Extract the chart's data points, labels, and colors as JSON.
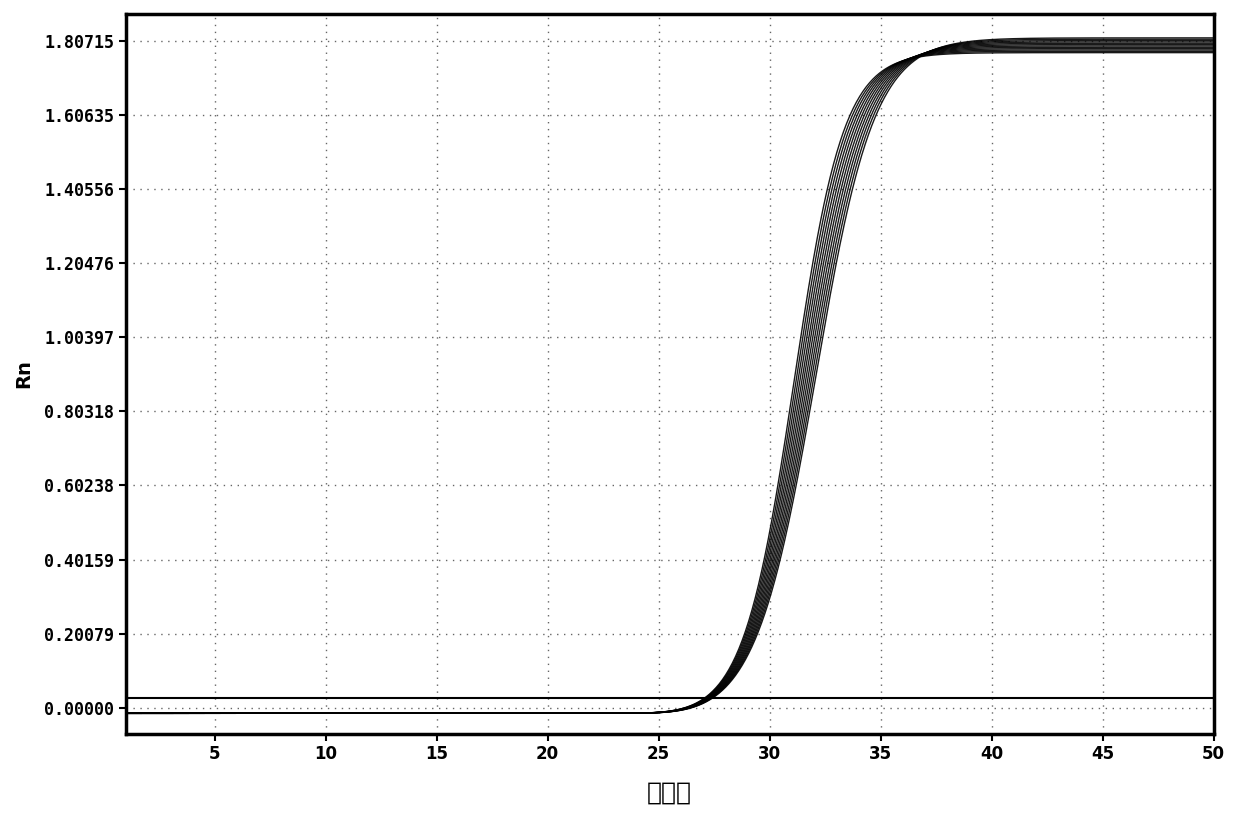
{
  "title": "",
  "xlabel": "循环数",
  "ylabel": "Rn",
  "xlim": [
    1,
    50
  ],
  "ylim": [
    -0.07,
    1.88
  ],
  "xticks": [
    5,
    10,
    15,
    20,
    25,
    30,
    35,
    40,
    45,
    50
  ],
  "yticks": [
    0.0,
    0.20079,
    0.40159,
    0.60238,
    0.80318,
    1.00397,
    1.20476,
    1.40556,
    1.60635,
    1.80715
  ],
  "ytick_labels": [
    "0.00000",
    "0.20079",
    "0.40159",
    "0.60238",
    "0.80318",
    "1.00397",
    "1.20476",
    "1.40556",
    "1.60635",
    "1.80715"
  ],
  "n_curves": 12,
  "sigmoid_midpoint_base": 31.5,
  "sigmoid_spread": 1.2,
  "plateau_min": 1.775,
  "plateau_max": 1.815,
  "curve_color": "#000000",
  "threshold_line_y": 0.027,
  "threshold_color": "#000000",
  "background_color": "#ffffff",
  "grid_color": "#555555",
  "xlabel_fontsize": 18,
  "ylabel_fontsize": 14,
  "tick_fontsize": 12,
  "figure_width": 12.39,
  "figure_height": 8.18,
  "dpi": 100
}
